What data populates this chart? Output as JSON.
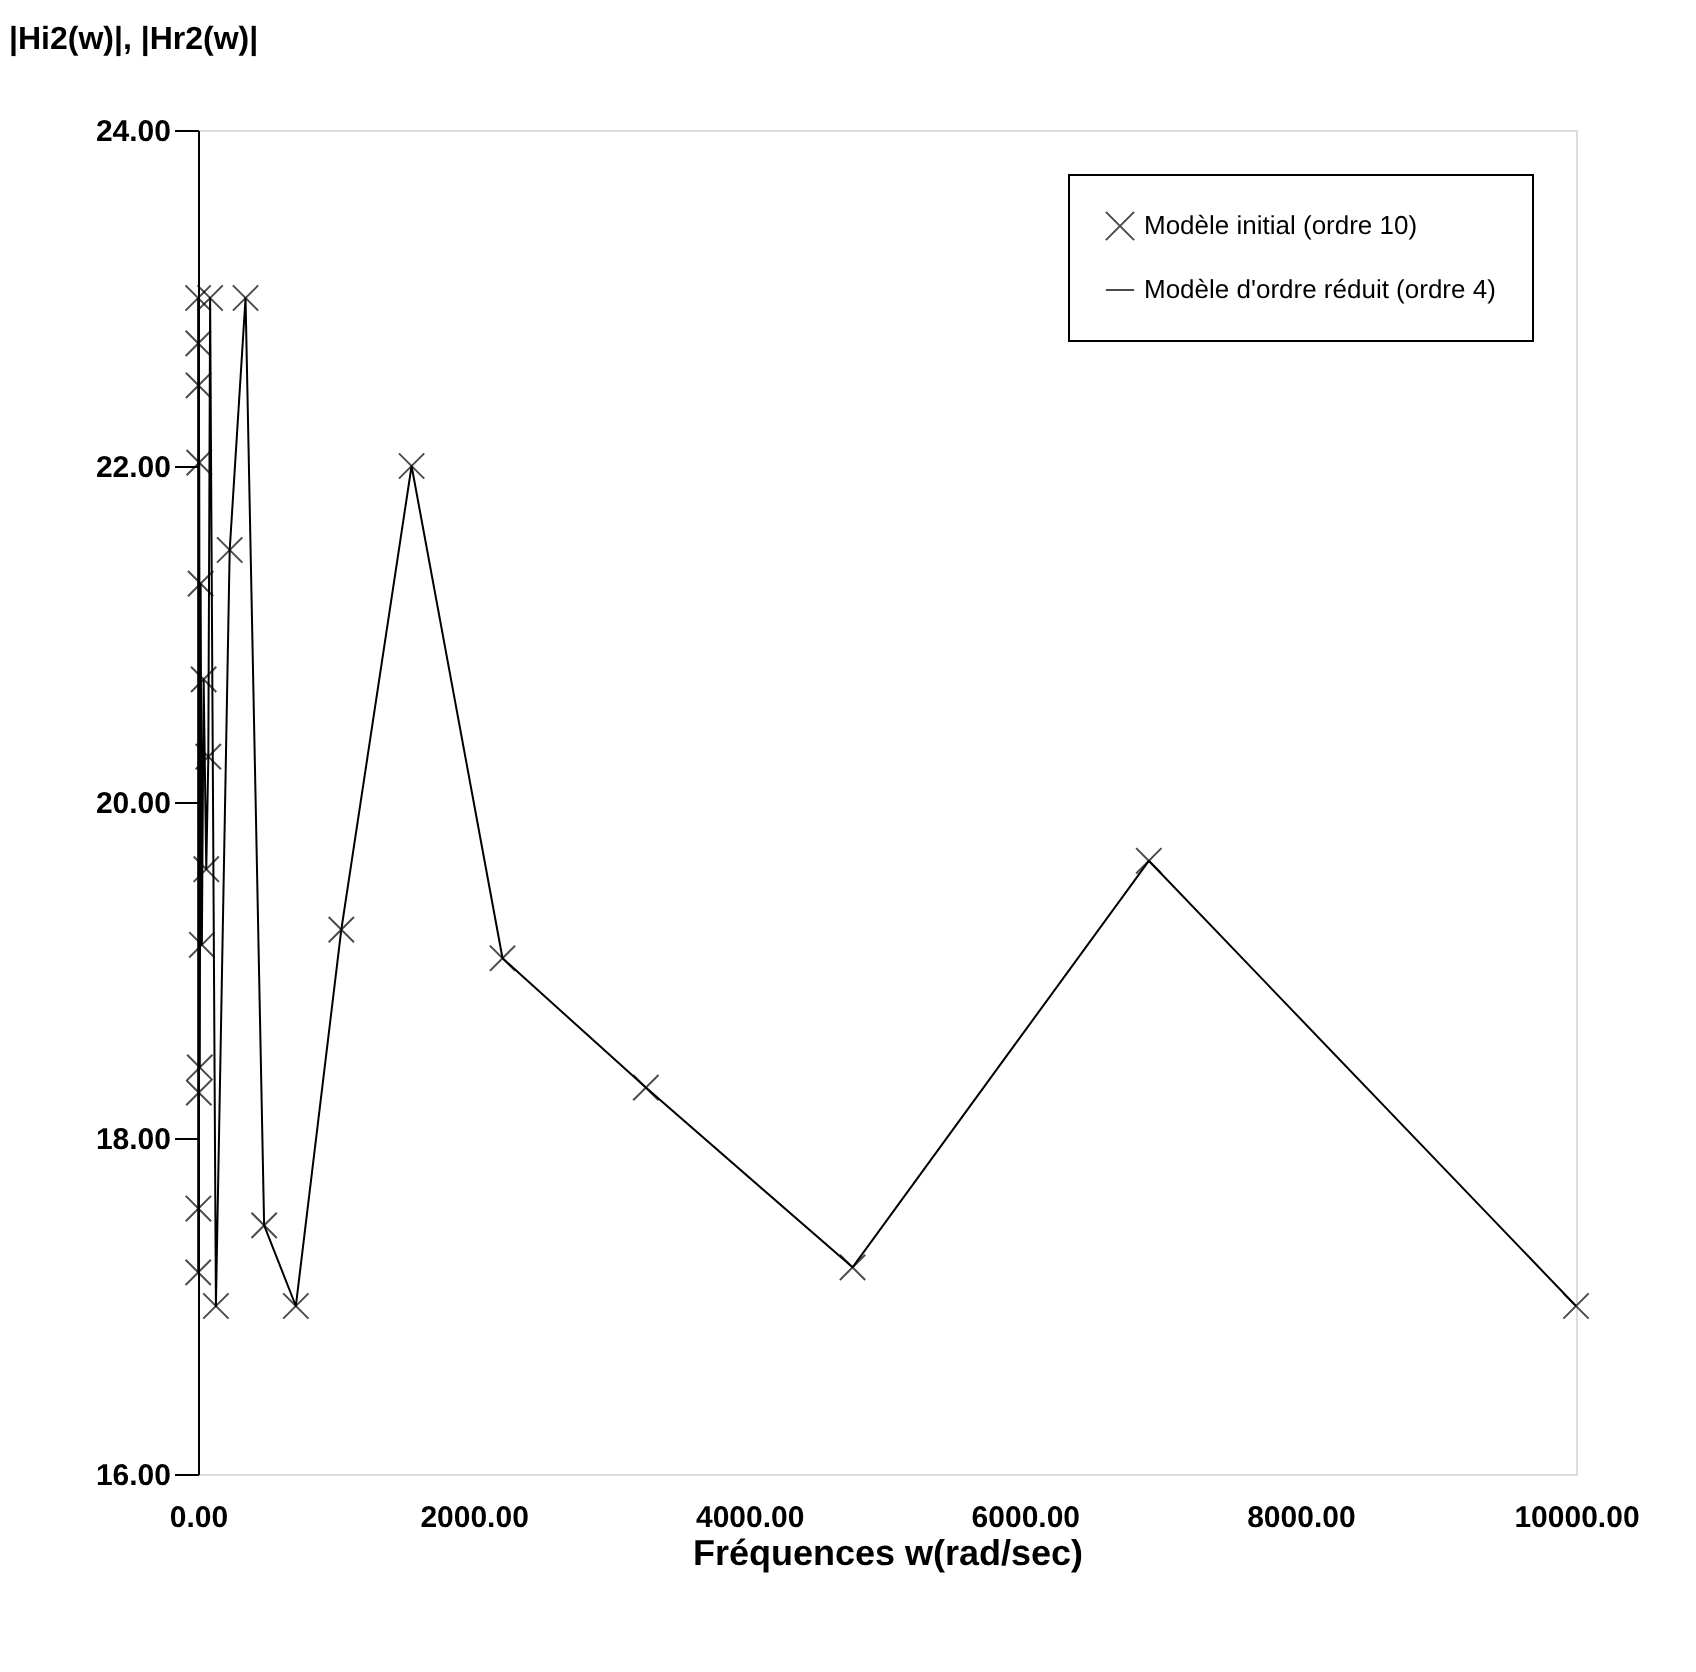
{
  "chart_data": {
    "type": "line",
    "xlabel": "Fréquences w(rad/sec)",
    "ylabel": "|Hi2(w)|, |Hr2(w)|",
    "xlim": [
      0,
      10000
    ],
    "ylim": [
      16,
      24
    ],
    "xticks": [
      {
        "value": 0,
        "label": "0.00"
      },
      {
        "value": 2000,
        "label": "2000.00"
      },
      {
        "value": 4000,
        "label": "4000.00"
      },
      {
        "value": 6000,
        "label": "6000.00"
      },
      {
        "value": 8000,
        "label": "8000.00"
      },
      {
        "value": 10000,
        "label": "10000.00"
      }
    ],
    "yticks": [
      {
        "value": 16,
        "label": "16.00"
      },
      {
        "value": 18,
        "label": "18.00"
      },
      {
        "value": 20,
        "label": "20.00"
      },
      {
        "value": 22,
        "label": "22.00"
      },
      {
        "value": 24,
        "label": "24.00"
      }
    ],
    "grid": false,
    "legend": "top right",
    "series": [
      {
        "name": "Modèle initial (ordre 10)",
        "type": "scatter",
        "marker": "cross",
        "color": "#000000",
        "x": [
          1,
          1.5,
          2,
          3,
          4,
          6,
          9,
          13,
          19,
          28,
          41,
          60,
          75,
          88,
          130,
          230,
          345,
          480,
          710,
          1040,
          1550,
          2210,
          3250,
          4750,
          6900,
          10000
        ],
        "values": [
          23.0,
          17.2,
          22.73,
          17.58,
          22.48,
          18.27,
          22.02,
          18.42,
          21.3,
          19.15,
          20.73,
          19.6,
          20.27,
          23.0,
          17.0,
          21.5,
          23.0,
          17.48,
          17.0,
          19.24,
          22.0,
          19.07,
          18.3,
          17.23,
          19.65,
          17.0
        ]
      },
      {
        "name": "Modèle d'ordre réduit (ordre 4)",
        "type": "line",
        "line_style": "solid",
        "color": "#000000",
        "x": [
          1,
          1.5,
          2,
          3,
          4,
          6,
          9,
          13,
          19,
          28,
          41,
          60,
          75,
          88,
          130,
          230,
          345,
          480,
          710,
          1040,
          1550,
          2210,
          3250,
          4750,
          6900,
          10000
        ],
        "values": [
          23.0,
          17.2,
          22.73,
          17.58,
          22.48,
          18.27,
          22.02,
          18.42,
          21.3,
          19.15,
          20.73,
          19.6,
          20.27,
          23.0,
          17.0,
          21.5,
          23.0,
          17.48,
          17.0,
          19.24,
          22.0,
          19.07,
          18.3,
          17.23,
          19.65,
          17.0
        ]
      }
    ]
  }
}
